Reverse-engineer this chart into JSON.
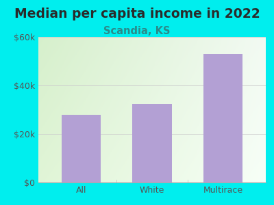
{
  "title": "Median per capita income in 2022",
  "subtitle": "Scandia, KS",
  "categories": [
    "All",
    "White",
    "Multirace"
  ],
  "values": [
    28000,
    32500,
    53000
  ],
  "bar_color": "#b3a0d4",
  "background_color": "#00EEEE",
  "plot_bg_color_topleft": "#d8f0d0",
  "plot_bg_color_topright": "#f0f8f0",
  "plot_bg_color_bottom": "#ffffff",
  "title_color": "#2a2a2a",
  "subtitle_color": "#2a8a8a",
  "tick_color": "#555555",
  "grid_color": "#cccccc",
  "ylim": [
    0,
    60000
  ],
  "yticks": [
    0,
    20000,
    40000,
    60000
  ],
  "ytick_labels": [
    "$0",
    "$20k",
    "$40k",
    "$60k"
  ],
  "title_fontsize": 13.5,
  "subtitle_fontsize": 10.5,
  "tick_fontsize": 9
}
